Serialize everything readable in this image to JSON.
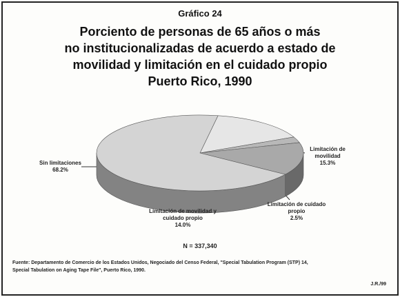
{
  "chart_data": {
    "type": "pie",
    "chart_number": "Gráfico 24",
    "title_lines": [
      "Porciento de personas de 65 años o más",
      "no institucionalizadas de acuerdo a estado de",
      "movilidad y limitación en el cuidado propio",
      "Puerto Rico, 1990"
    ],
    "categories": [
      "Limitación de movilidad",
      "Limitación de cuidado propio",
      "Limitación de movilidad y cuidado propio",
      "Sin limitaciones"
    ],
    "values": [
      15.3,
      2.5,
      14.0,
      68.2
    ],
    "value_labels": [
      "15.3%",
      "2.5%",
      "14.0%",
      "68.2%"
    ],
    "colors": [
      "#e6e6e6",
      "#b8b8b8",
      "#a9a9a9",
      "#d4d4d4"
    ],
    "annotation": "N = 337,340",
    "source_lines": [
      "Fuente: Departamento de Comercio de los Estados Unidos, Negociado del Censo Federal, \"Special Tabulation Program (STP) 14,",
      "Special Tabulation on Aging Tape File\", Puerto Rico, 1990."
    ],
    "author": "J.R./99"
  }
}
